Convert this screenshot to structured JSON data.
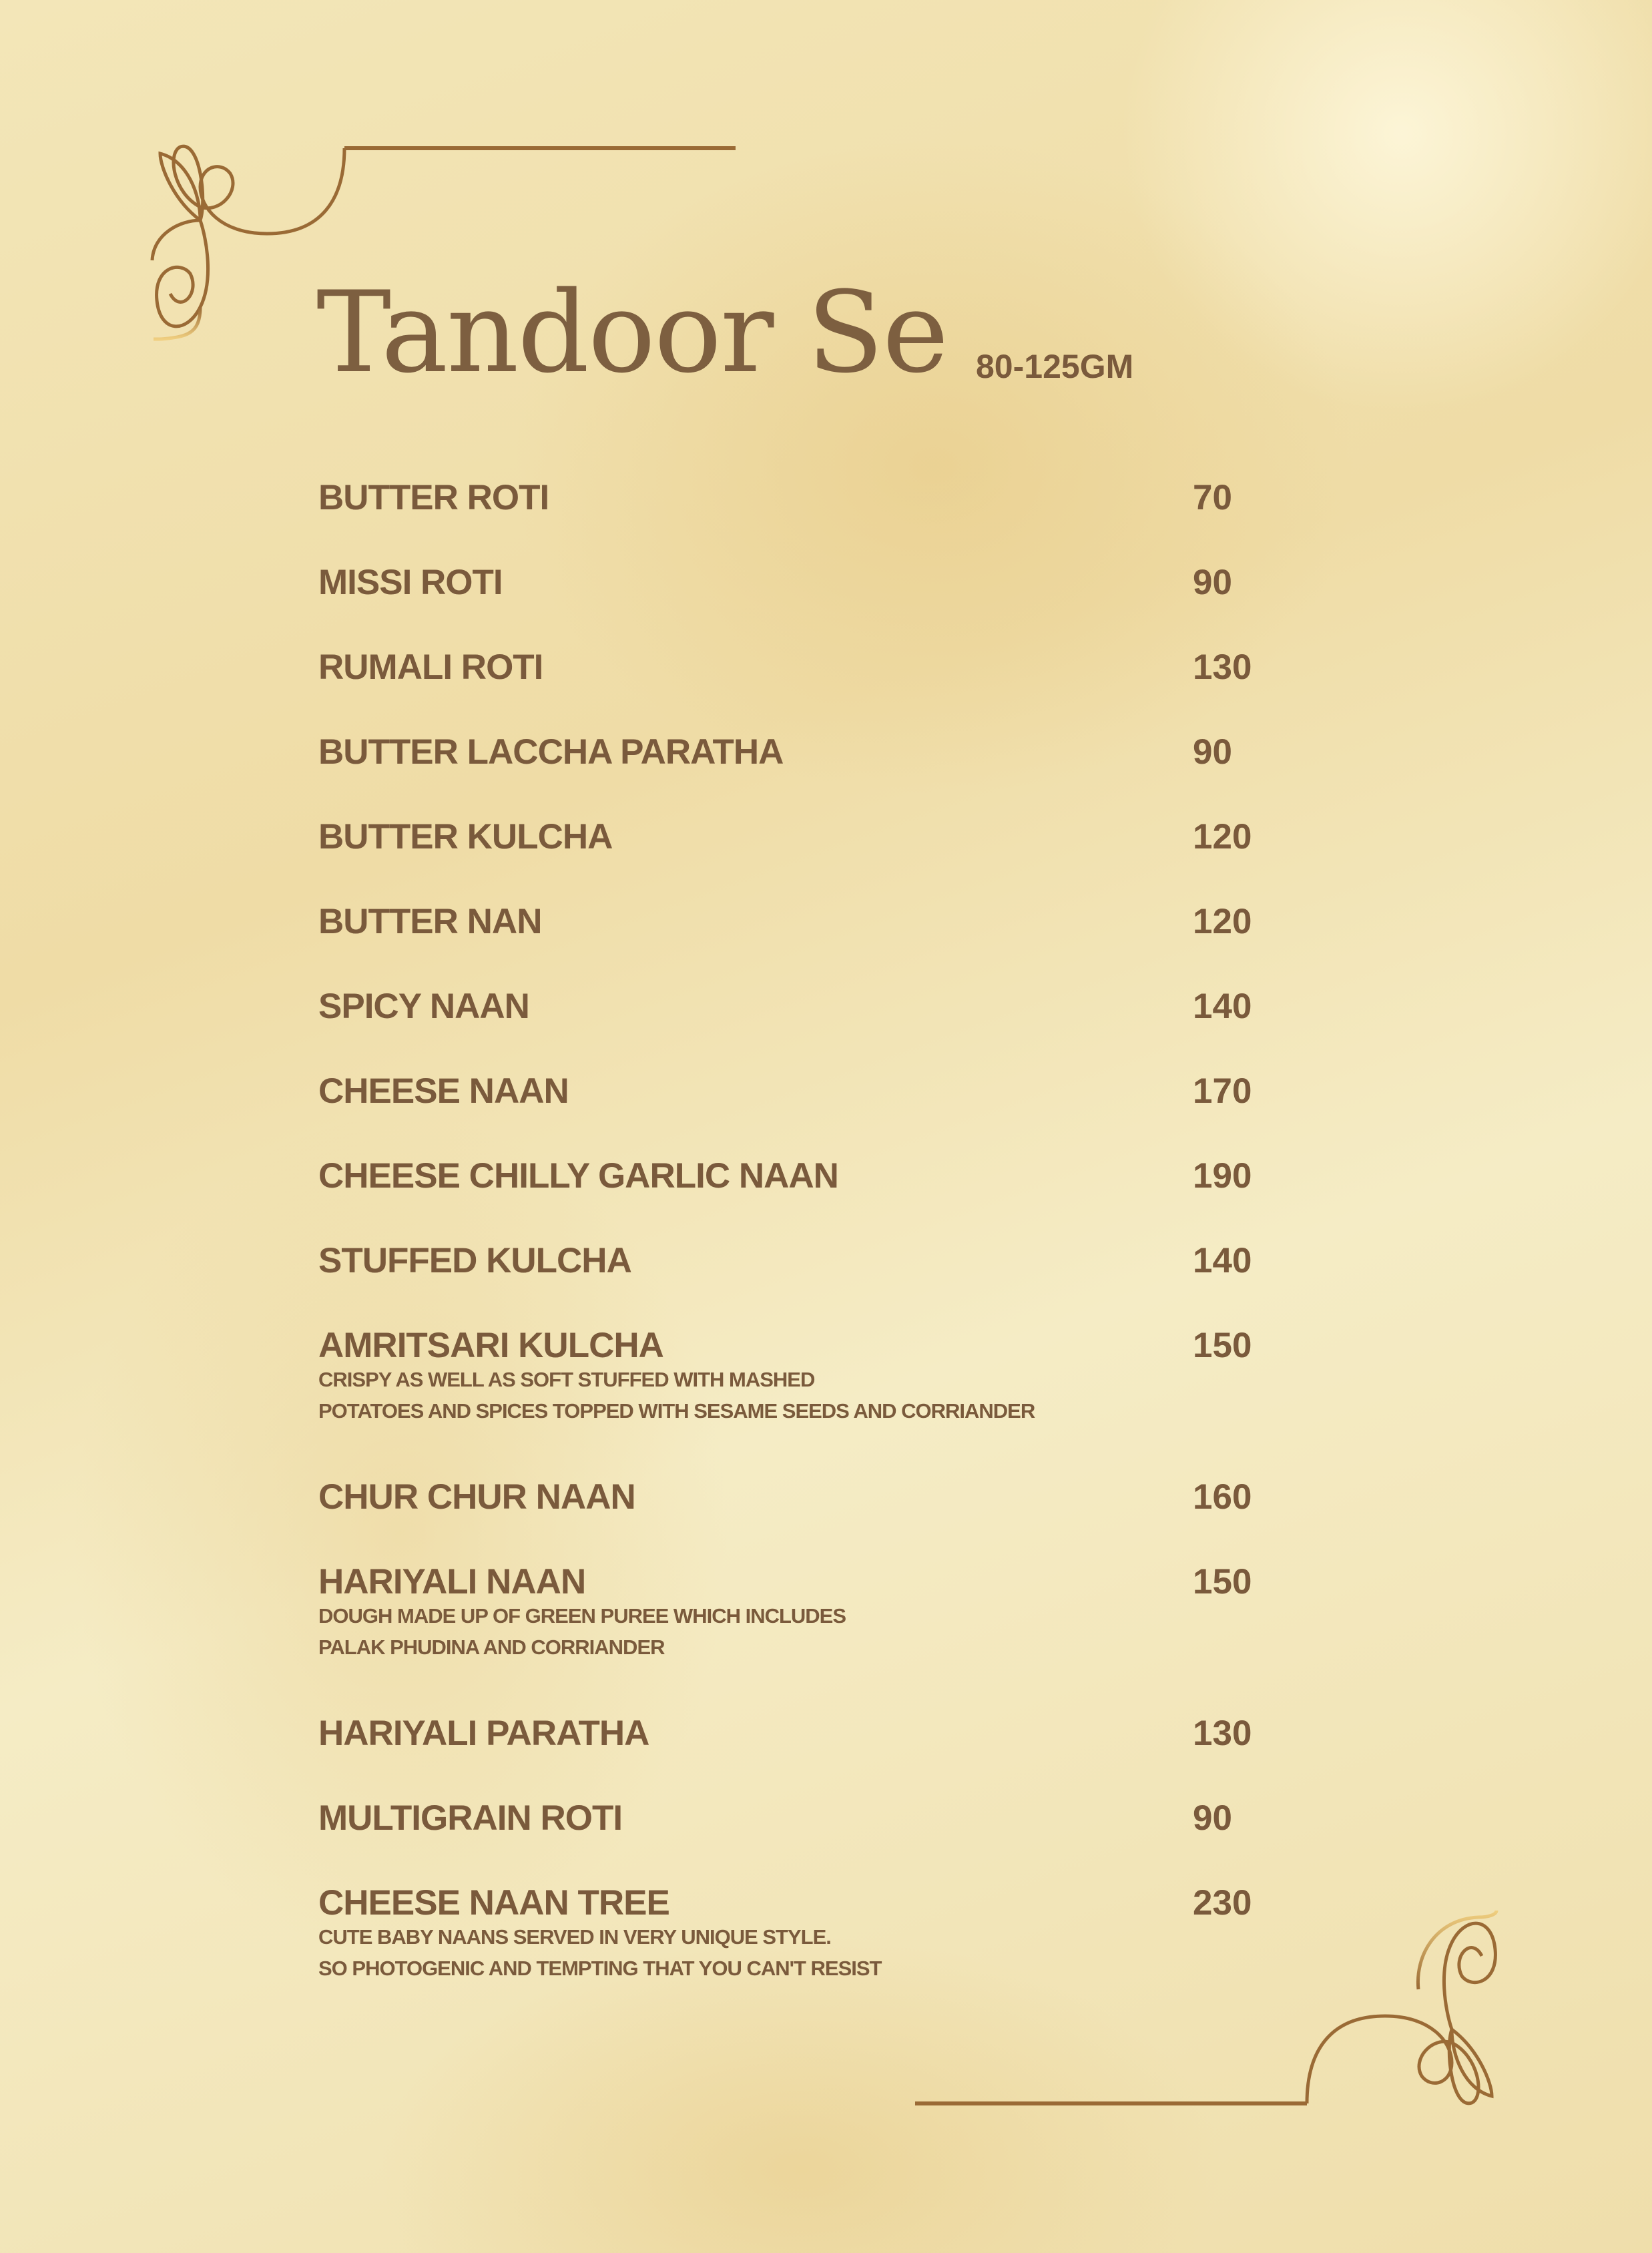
{
  "header": {
    "title": "Tandoor Se",
    "subtitle": "80-125GM"
  },
  "colors": {
    "text": "#7a5a3c",
    "frame": "#9a6a35",
    "background": "#f0dfa8"
  },
  "items": [
    {
      "name": "BUTTER ROTI",
      "price": "70"
    },
    {
      "name": "MISSI ROTI",
      "price": "90"
    },
    {
      "name": "RUMALI ROTI",
      "price": "130"
    },
    {
      "name": "BUTTER LACCHA PARATHA",
      "price": "90"
    },
    {
      "name": "BUTTER KULCHA",
      "price": "120"
    },
    {
      "name": "BUTTER NAN",
      "price": "120"
    },
    {
      "name": "SPICY NAAN",
      "price": "140"
    },
    {
      "name": "CHEESE NAAN",
      "price": "170"
    },
    {
      "name": "CHEESE CHILLY GARLIC NAAN",
      "price": "190"
    },
    {
      "name": "STUFFED KULCHA",
      "price": "140"
    },
    {
      "name": "AMRITSARI KULCHA",
      "price": "150",
      "desc": [
        "CRISPY AS WELL AS SOFT STUFFED WITH MASHED",
        "POTATOES AND SPICES TOPPED WITH SESAME SEEDS AND CORRIANDER"
      ]
    },
    {
      "name": "CHUR CHUR NAAN",
      "price": "160"
    },
    {
      "name": "HARIYALI NAAN",
      "price": "150",
      "desc": [
        "DOUGH MADE UP OF GREEN PUREE WHICH INCLUDES",
        "PALAK PHUDINA AND CORRIANDER"
      ]
    },
    {
      "name": "HARIYALI PARATHA",
      "price": "130"
    },
    {
      "name": "MULTIGRAIN ROTI",
      "price": "90"
    },
    {
      "name": "CHEESE NAAN TREE",
      "price": "230",
      "desc": [
        "CUTE BABY NAANS SERVED IN VERY UNIQUE STYLE.",
        "SO PHOTOGENIC AND TEMPTING THAT YOU CAN'T RESIST"
      ]
    }
  ]
}
